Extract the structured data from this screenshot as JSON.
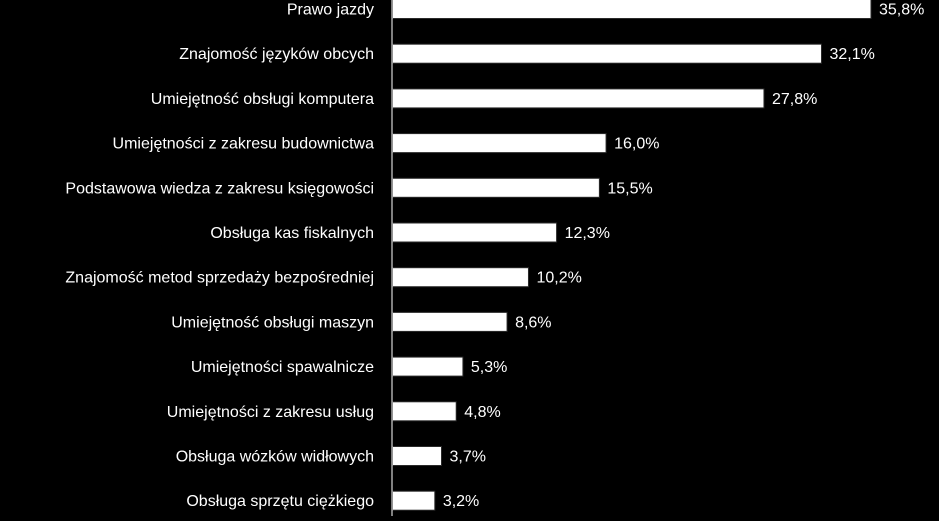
{
  "chart_data": {
    "type": "bar",
    "orientation": "horizontal",
    "categories": [
      "Prawo jazdy",
      "Znajomość języków obcych",
      "Umiejętność obsługi komputera",
      "Umiejętności z zakresu budownictwa",
      "Podstawowa wiedza z zakresu księgowości",
      "Obsługa kas fiskalnych",
      "Znajomość metod sprzedaży bezpośredniej",
      "Umiejętność obsługi maszyn",
      "Umiejętności spawalnicze",
      "Umiejętności z zakresu usług",
      "Obsługa wózków widłowych",
      "Obsługa sprzętu ciężkiego"
    ],
    "values": [
      35.8,
      32.1,
      27.8,
      16.0,
      15.5,
      12.3,
      10.2,
      8.6,
      5.3,
      4.8,
      3.7,
      3.2
    ],
    "value_labels": [
      "35,8%",
      "32,1%",
      "27,8%",
      "16,0%",
      "15,5%",
      "12,3%",
      "10,2%",
      "8,6%",
      "5,3%",
      "4,8%",
      "3,7%",
      "3,2%"
    ],
    "title": "",
    "xlabel": "",
    "ylabel": "",
    "xlim": [
      0,
      35.8
    ],
    "grid": false,
    "legend": "none",
    "colors": {
      "background": "#000000",
      "bar_fill": "#ffffff",
      "bar_stroke": "#2a2a2a",
      "text": "#ffffff",
      "axis": "#ffffff"
    }
  }
}
